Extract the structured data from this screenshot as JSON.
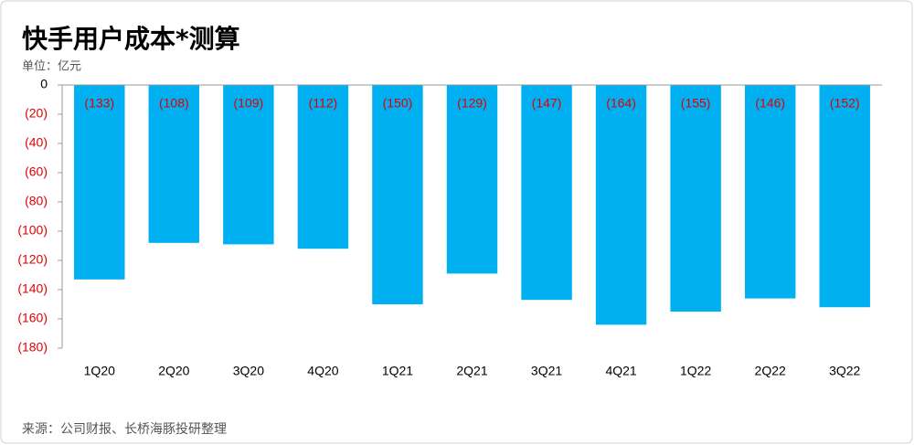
{
  "chart_data": {
    "type": "bar",
    "title": "快手用户成本*测算",
    "subtitle": "单位：亿元",
    "source": "来源：公司财报、长桥海豚投研整理",
    "categories": [
      "1Q20",
      "2Q20",
      "3Q20",
      "4Q20",
      "1Q21",
      "2Q21",
      "3Q21",
      "4Q21",
      "1Q22",
      "2Q22",
      "3Q22"
    ],
    "values": [
      -133,
      -108,
      -109,
      -112,
      -150,
      -129,
      -147,
      -164,
      -155,
      -146,
      -152
    ],
    "value_labels": [
      "(133)",
      "(108)",
      "(109)",
      "(112)",
      "(150)",
      "(129)",
      "(147)",
      "(164)",
      "(155)",
      "(146)",
      "(152)"
    ],
    "color": "#00b0f0",
    "ylim": [
      -180,
      0
    ],
    "yticks": [
      0,
      {
        "value": -20,
        "label": "(20)"
      },
      {
        "value": -40,
        "label": "(40)"
      },
      {
        "value": -60,
        "label": "(60)"
      },
      {
        "value": -80,
        "label": "(80)"
      },
      {
        "value": -100,
        "label": "(100)"
      },
      {
        "value": -120,
        "label": "(120)"
      },
      {
        "value": -140,
        "label": "(140)"
      },
      {
        "value": -160,
        "label": "(160)"
      },
      {
        "value": -180,
        "label": "(180)"
      }
    ],
    "grid": false
  }
}
